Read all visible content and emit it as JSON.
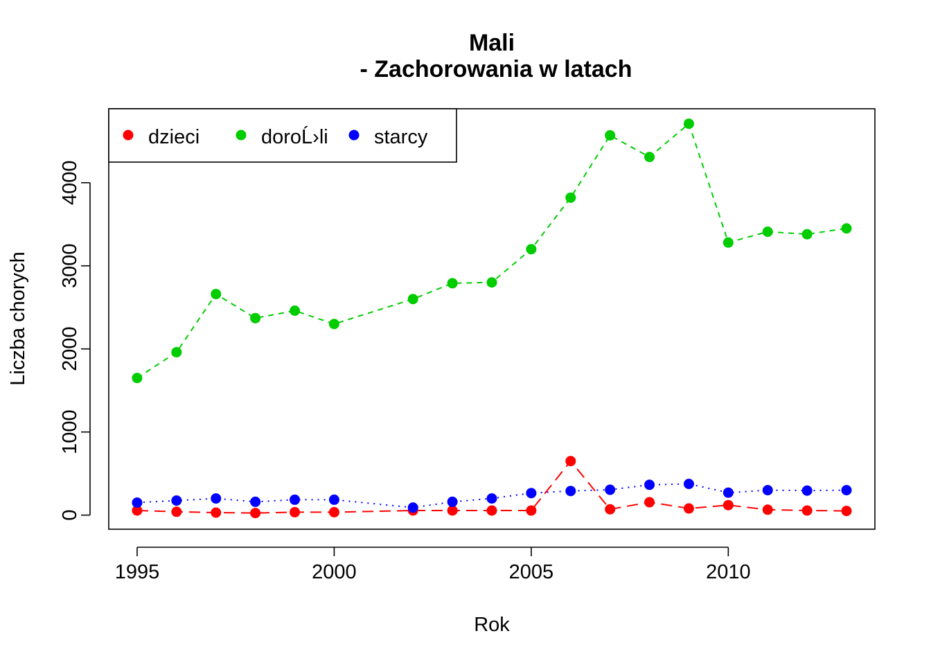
{
  "chart_data": {
    "type": "line",
    "title_line1": "Mali",
    "title_line2": "- Zachorowania w latach",
    "xlabel": "Rok",
    "ylabel": "Liczba chorych",
    "xlim": [
      1994.28,
      2013.72
    ],
    "ylim": [
      -170,
      4890
    ],
    "xticks": [
      1995,
      2000,
      2005,
      2010
    ],
    "yticks": [
      0,
      1000,
      2000,
      3000,
      4000
    ],
    "legend_position": "top-left",
    "series": [
      {
        "name": "dzieci",
        "color": "#FF0000",
        "dash": "long-dash",
        "points": [
          [
            1995,
            55
          ],
          [
            1996,
            40
          ],
          [
            1997,
            30
          ],
          [
            1998,
            25
          ],
          [
            1999,
            35
          ],
          [
            2000,
            35
          ],
          [
            2002,
            55
          ],
          [
            2003,
            55
          ],
          [
            2004,
            55
          ],
          [
            2005,
            55
          ],
          [
            2006,
            650
          ],
          [
            2007,
            70
          ],
          [
            2008,
            155
          ],
          [
            2009,
            80
          ],
          [
            2010,
            120
          ],
          [
            2011,
            65
          ],
          [
            2012,
            55
          ],
          [
            2013,
            50
          ]
        ]
      },
      {
        "name": "doroĹ›li",
        "color": "#00CD00",
        "dash": "short-dash",
        "points": [
          [
            1995,
            1650
          ],
          [
            1996,
            1960
          ],
          [
            1997,
            2660
          ],
          [
            1998,
            2370
          ],
          [
            1999,
            2460
          ],
          [
            2000,
            2300
          ],
          [
            2002,
            2600
          ],
          [
            2003,
            2790
          ],
          [
            2004,
            2800
          ],
          [
            2005,
            3200
          ],
          [
            2006,
            3820
          ],
          [
            2007,
            4570
          ],
          [
            2008,
            4310
          ],
          [
            2009,
            4710
          ],
          [
            2010,
            3280
          ],
          [
            2011,
            3410
          ],
          [
            2012,
            3380
          ],
          [
            2013,
            3450
          ]
        ]
      },
      {
        "name": "starcy",
        "color": "#0000FF",
        "dash": "dotted",
        "points": [
          [
            1995,
            150
          ],
          [
            1996,
            175
          ],
          [
            1997,
            200
          ],
          [
            1998,
            160
          ],
          [
            1999,
            185
          ],
          [
            2000,
            185
          ],
          [
            2002,
            90
          ],
          [
            2003,
            160
          ],
          [
            2004,
            200
          ],
          [
            2005,
            265
          ],
          [
            2006,
            290
          ],
          [
            2007,
            305
          ],
          [
            2008,
            365
          ],
          [
            2009,
            375
          ],
          [
            2010,
            270
          ],
          [
            2011,
            300
          ],
          [
            2012,
            295
          ],
          [
            2013,
            300
          ]
        ]
      }
    ]
  }
}
